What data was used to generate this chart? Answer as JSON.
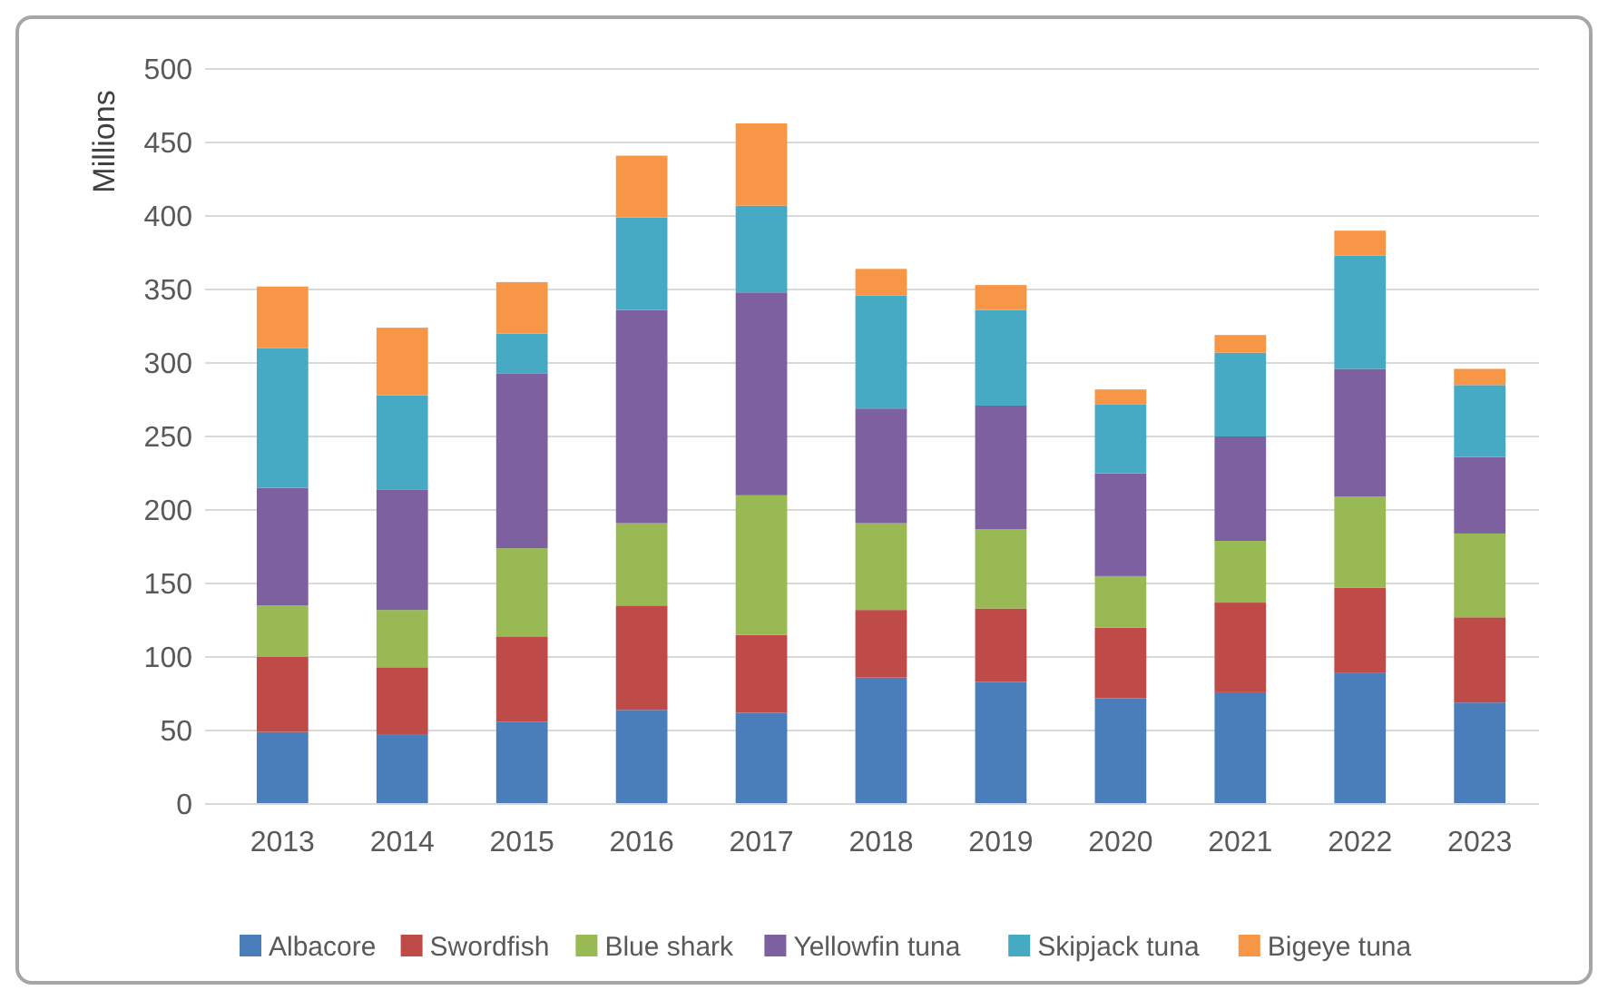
{
  "chart_data": {
    "type": "bar",
    "stacked": true,
    "ylabel": "Millions",
    "categories": [
      "2013",
      "2014",
      "2015",
      "2016",
      "2017",
      "2018",
      "2019",
      "2020",
      "2021",
      "2022",
      "2023"
    ],
    "series": [
      {
        "name": "Albacore",
        "color": "#4a7ebb",
        "values": [
          49,
          47,
          56,
          64,
          62,
          86,
          83,
          72,
          76,
          89,
          69
        ]
      },
      {
        "name": "Swordfish",
        "color": "#be4b48",
        "values": [
          51,
          46,
          58,
          71,
          53,
          46,
          50,
          48,
          61,
          58,
          58
        ]
      },
      {
        "name": "Blue shark",
        "color": "#98b954",
        "values": [
          35,
          39,
          60,
          56,
          95,
          59,
          54,
          35,
          42,
          62,
          57
        ]
      },
      {
        "name": "Yellowfin tuna",
        "color": "#7d60a0",
        "values": [
          80,
          82,
          119,
          145,
          138,
          78,
          84,
          70,
          71,
          87,
          52
        ]
      },
      {
        "name": "Skipjack tuna",
        "color": "#46aac5",
        "values": [
          95,
          64,
          27,
          63,
          59,
          77,
          65,
          47,
          57,
          77,
          49
        ]
      },
      {
        "name": "Bigeye tuna",
        "color": "#f79646",
        "values": [
          42,
          46,
          35,
          42,
          56,
          18,
          17,
          10,
          12,
          17,
          11
        ]
      }
    ],
    "ylim": [
      0,
      500
    ],
    "yticks": [
      0,
      50,
      100,
      150,
      200,
      250,
      300,
      350,
      400,
      450,
      500
    ],
    "grid": "y",
    "legend": "bottom"
  }
}
